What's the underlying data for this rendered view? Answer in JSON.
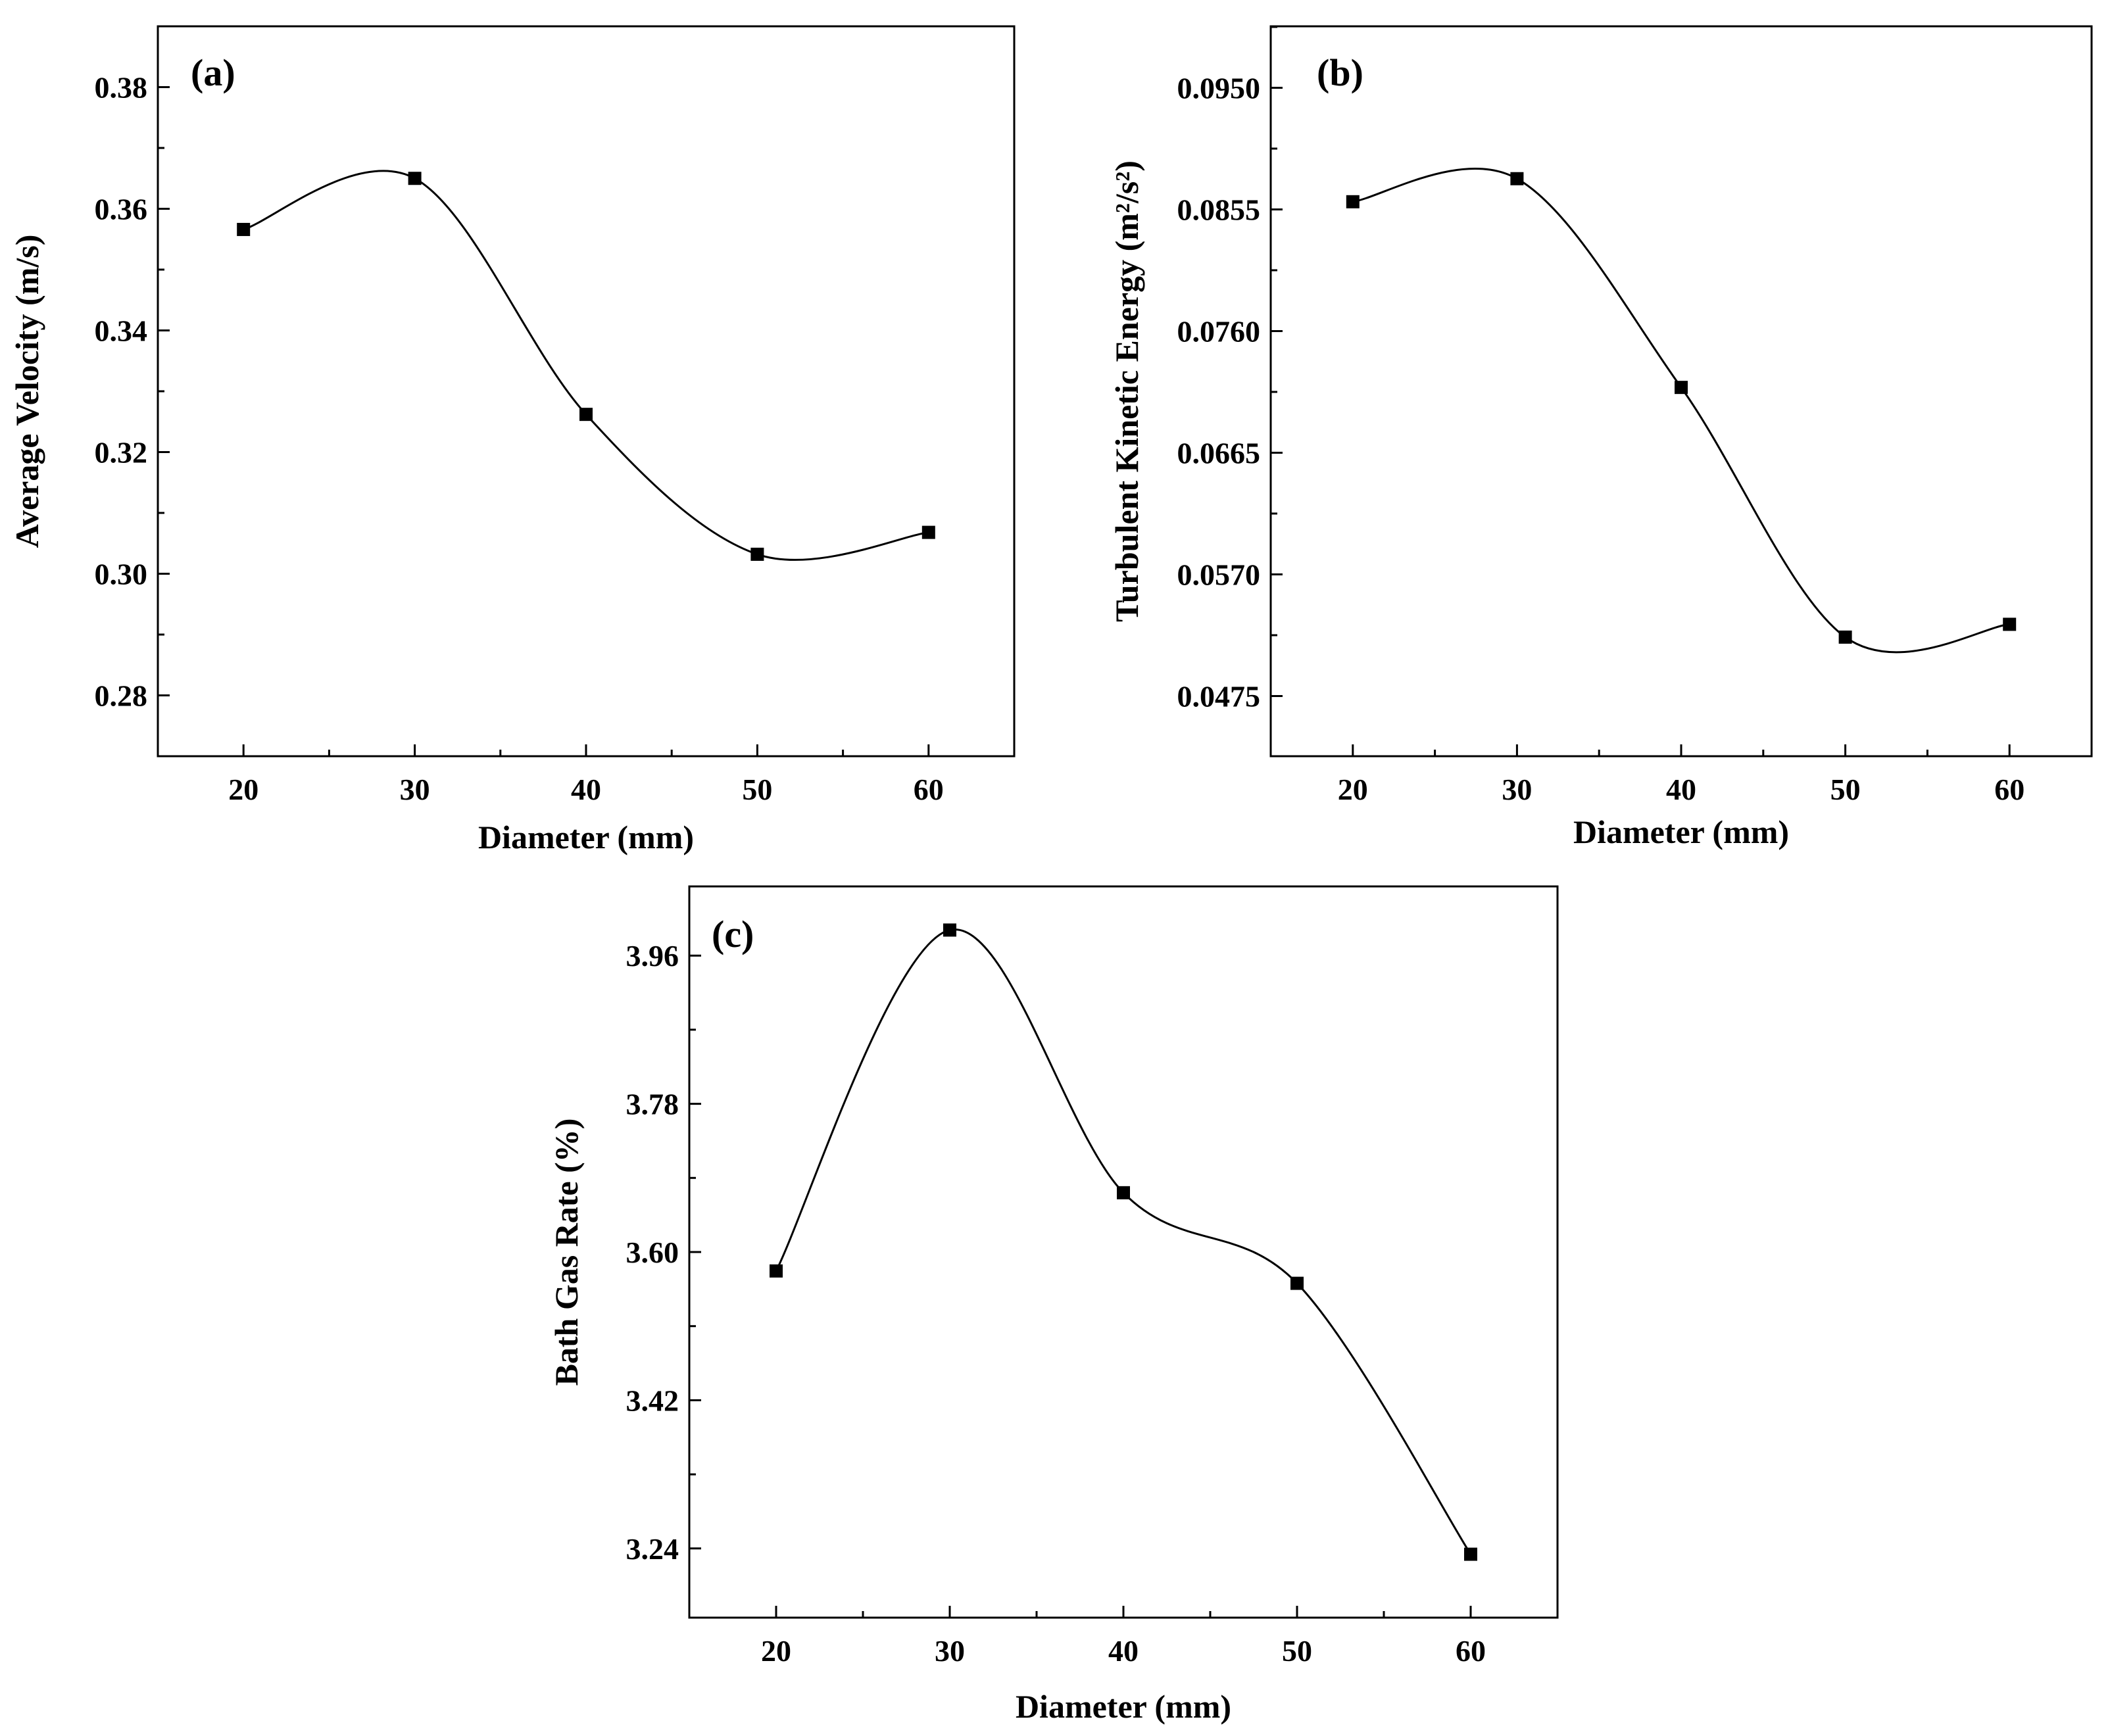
{
  "chart_data": [
    {
      "id": "a",
      "type": "line",
      "panel_label": "(a)",
      "xlabel": "Diameter (mm)",
      "ylabel": "Average Velocity (m/s)",
      "xlim": [
        15,
        65
      ],
      "ylim": [
        0.27,
        0.39
      ],
      "xticks": [
        20,
        30,
        40,
        50,
        60
      ],
      "xtick_labels": [
        "20",
        "30",
        "40",
        "50",
        "60"
      ],
      "yticks": [
        0.28,
        0.3,
        0.32,
        0.34,
        0.36,
        0.38
      ],
      "ytick_labels": [
        "0.28",
        "0.30",
        "0.32",
        "0.34",
        "0.36",
        "0.38"
      ],
      "x": [
        20,
        30,
        40,
        50,
        60
      ],
      "y": [
        0.3566,
        0.365,
        0.3262,
        0.3032,
        0.3068
      ],
      "marker": "square",
      "smoothed": true
    },
    {
      "id": "b",
      "type": "line",
      "panel_label": "(b)",
      "xlabel": "Diameter (mm)",
      "ylabel": "Turbulent Kinetic Energy (m²/s²)",
      "xlim": [
        15,
        65
      ],
      "ylim": [
        0.0428,
        0.0998
      ],
      "xticks": [
        20,
        30,
        40,
        50,
        60
      ],
      "xtick_labels": [
        "20",
        "30",
        "40",
        "50",
        "60"
      ],
      "yticks": [
        0.0475,
        0.057,
        0.0665,
        0.076,
        0.0855,
        0.095
      ],
      "ytick_labels": [
        "0.0475",
        "0.0570",
        "0.0665",
        "0.0760",
        "0.0855",
        "0.0950"
      ],
      "x": [
        20,
        30,
        40,
        50,
        60
      ],
      "y": [
        0.0861,
        0.0879,
        0.0716,
        0.0521,
        0.0531
      ],
      "marker": "square",
      "smoothed": true
    },
    {
      "id": "c",
      "type": "line",
      "panel_label": "(c)",
      "xlabel": "Diameter (mm)",
      "ylabel": "Bath Gas Rate (%)",
      "xlim": [
        15,
        65
      ],
      "ylim": [
        3.156,
        4.044
      ],
      "xticks": [
        20,
        30,
        40,
        50,
        60
      ],
      "xtick_labels": [
        "20",
        "30",
        "40",
        "50",
        "60"
      ],
      "yticks": [
        3.24,
        3.42,
        3.6,
        3.78,
        3.96
      ],
      "ytick_labels": [
        "3.24",
        "3.42",
        "3.60",
        "3.78",
        "3.96"
      ],
      "x": [
        20,
        30,
        40,
        50,
        60
      ],
      "y": [
        3.577,
        3.991,
        3.672,
        3.562,
        3.233
      ],
      "marker": "square",
      "smoothed": true
    }
  ]
}
